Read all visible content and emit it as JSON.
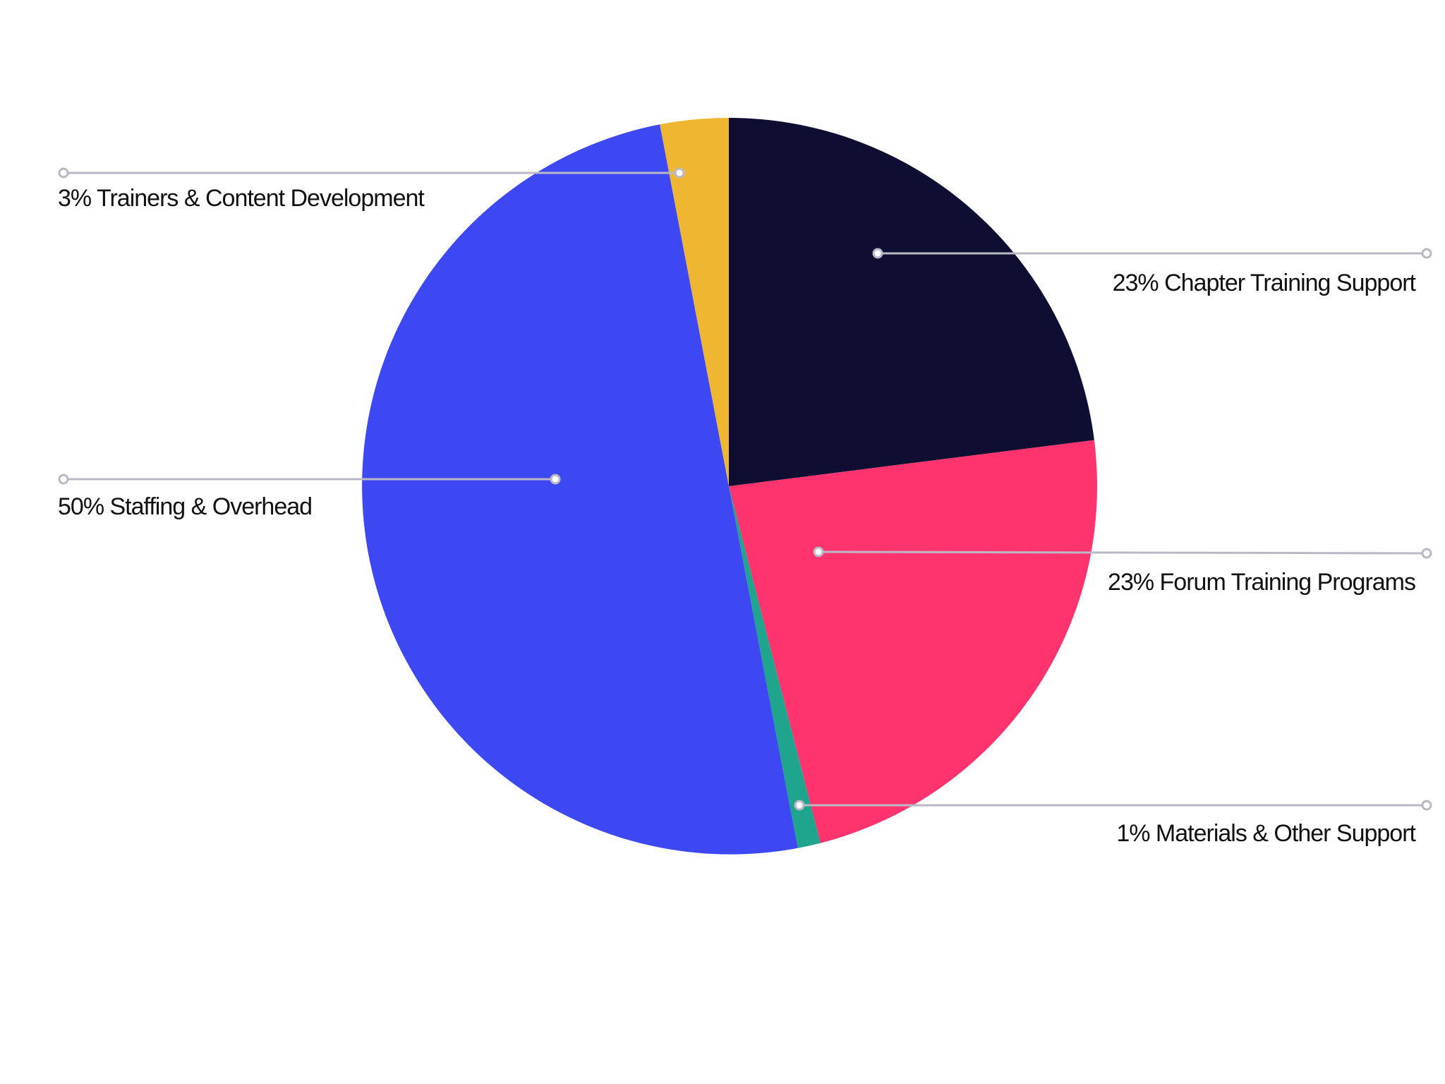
{
  "chart_data": {
    "type": "pie",
    "start_angle_deg": 0,
    "direction": "clockwise",
    "slices": [
      {
        "label": "23% Chapter Training Support",
        "value": 23,
        "color": "#0e0e33"
      },
      {
        "label": "23% Forum Training Programs",
        "value": 23,
        "color": "#ff346e"
      },
      {
        "label": "1% Materials & Other Support",
        "value": 1,
        "color": "#1fa58d"
      },
      {
        "label": "50% Staffing & Overhead",
        "value": 50,
        "color": "#3e48f2"
      },
      {
        "label": "3% Trainers & Content Development",
        "value": 3,
        "color": "#efb731"
      }
    ],
    "legend": "none",
    "label_style": "leader-lines"
  }
}
